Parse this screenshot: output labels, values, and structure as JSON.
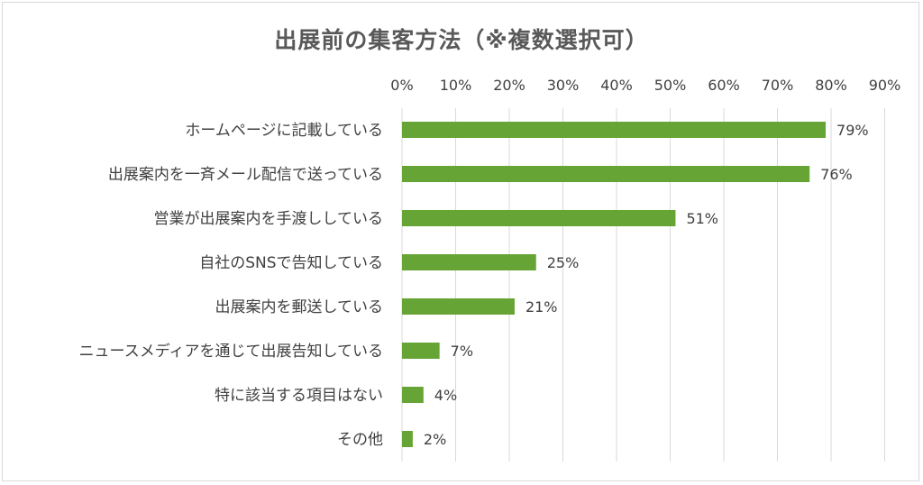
{
  "chart_data": {
    "type": "bar",
    "orientation": "horizontal",
    "title": "出展前の集客方法（※複数選択可）",
    "categories": [
      "ホームページに記載している",
      "出展案内を一斉メール配信で送っている",
      "営業が出展案内を手渡ししている",
      "自社のSNSで告知している",
      "出展案内を郵送している",
      "ニュースメディアを通じて出展告知している",
      "特に該当する項目はない",
      "その他"
    ],
    "values": [
      79,
      76,
      51,
      25,
      21,
      7,
      4,
      2
    ],
    "data_labels": [
      "79%",
      "76%",
      "51%",
      "25%",
      "21%",
      "7%",
      "4%",
      "2%"
    ],
    "x_ticks": [
      "0%",
      "10%",
      "20%",
      "30%",
      "40%",
      "50%",
      "60%",
      "70%",
      "80%",
      "90%"
    ],
    "xlim": [
      0,
      90
    ],
    "x_axis_position": "top",
    "grid": true,
    "bar_color": "#66a535",
    "legend": "none"
  }
}
